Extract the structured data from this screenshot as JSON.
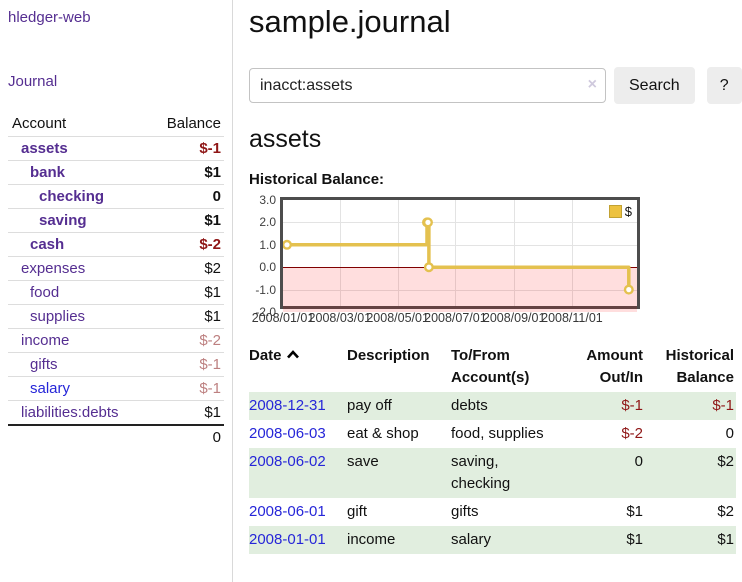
{
  "sidebar": {
    "brand": "hledger-web",
    "journal_link": "Journal",
    "accounts_table": {
      "headers": {
        "account": "Account",
        "balance": "Balance"
      },
      "rows": [
        {
          "name": "assets",
          "balance": "$-1",
          "indent": 1,
          "bold": true,
          "neg": "strong",
          "link": "purple"
        },
        {
          "name": "bank",
          "balance": "$1",
          "indent": 2,
          "bold": true,
          "neg": null,
          "link": "purple"
        },
        {
          "name": "checking",
          "balance": "0",
          "indent": 3,
          "bold": true,
          "neg": null,
          "link": "purple"
        },
        {
          "name": "saving",
          "balance": "$1",
          "indent": 3,
          "bold": true,
          "neg": null,
          "link": "purple"
        },
        {
          "name": "cash",
          "balance": "$-2",
          "indent": 2,
          "bold": true,
          "neg": "strong",
          "link": "purple"
        },
        {
          "name": "expenses",
          "balance": "$2",
          "indent": 1,
          "bold": false,
          "neg": null,
          "link": "purple"
        },
        {
          "name": "food",
          "balance": "$1",
          "indent": 2,
          "bold": false,
          "neg": null,
          "link": "purple"
        },
        {
          "name": "supplies",
          "balance": "$1",
          "indent": 2,
          "bold": false,
          "neg": null,
          "link": "purple"
        },
        {
          "name": "income",
          "balance": "$-2",
          "indent": 1,
          "bold": false,
          "neg": "light",
          "link": "purple"
        },
        {
          "name": "gifts",
          "balance": "$-1",
          "indent": 2,
          "bold": false,
          "neg": "light",
          "link": "purple"
        },
        {
          "name": "salary",
          "balance": "$-1",
          "indent": 2,
          "bold": false,
          "neg": "light",
          "link": "blue"
        },
        {
          "name": "liabilities:debts",
          "balance": "$1",
          "indent": 1,
          "bold": false,
          "neg": null,
          "link": "purple"
        }
      ],
      "total": "0"
    }
  },
  "main": {
    "title": "sample.journal",
    "search": {
      "value": "inacct:assets",
      "clear_icon": "×",
      "search_label": "Search",
      "help_label": "?"
    },
    "account_heading": "assets",
    "chart_label": "Historical Balance:"
  },
  "chart_data": {
    "type": "line",
    "style": "step",
    "title": "Historical Balance:",
    "legend": {
      "position": "top-right",
      "entries": [
        {
          "label": "$",
          "color": "#edc240"
        }
      ]
    },
    "series": [
      {
        "name": "$",
        "color": "#e4c14f",
        "points": [
          {
            "date": "2008-01-01",
            "day": 0,
            "value": 1
          },
          {
            "date": "2008-06-01",
            "day": 152,
            "value": 2
          },
          {
            "date": "2008-06-02",
            "day": 153,
            "value": 2
          },
          {
            "date": "2008-06-03",
            "day": 154,
            "value": 0
          },
          {
            "date": "2008-12-31",
            "day": 365,
            "value": -1
          }
        ]
      }
    ],
    "xlim_days": [
      0,
      380
    ],
    "ylim": [
      -2,
      3
    ],
    "yticks": [
      {
        "v": 3,
        "label": "3.0"
      },
      {
        "v": 2,
        "label": "2.0"
      },
      {
        "v": 1,
        "label": "1.0"
      },
      {
        "v": 0,
        "label": "0.0"
      },
      {
        "v": -1,
        "label": "-1.0"
      },
      {
        "v": -2,
        "label": "-2.0"
      }
    ],
    "xticks": [
      {
        "day": 0,
        "label": "2008/01/01"
      },
      {
        "day": 60,
        "label": "2008/03/01"
      },
      {
        "day": 121,
        "label": "2008/05/01"
      },
      {
        "day": 182,
        "label": "2008/07/01"
      },
      {
        "day": 244,
        "label": "2008/09/01"
      },
      {
        "day": 305,
        "label": "2008/11/01"
      }
    ],
    "grid": true,
    "negative_region_below": 0,
    "zero_line_color": "#800000"
  },
  "register_table": {
    "headers": {
      "date": "Date",
      "description": "Description",
      "accounts": "To/From Account(s)",
      "amount": "Amount Out/In",
      "balance": "Historical Balance"
    },
    "sort": {
      "column": "date",
      "direction": "ascending"
    },
    "rows": [
      {
        "date": "2008-12-31",
        "description": "pay off",
        "accounts": "debts",
        "amount": "$-1",
        "amount_neg": true,
        "balance": "$-1",
        "balance_neg": true,
        "shade": true
      },
      {
        "date": "2008-06-03",
        "description": "eat & shop",
        "accounts": "food, supplies",
        "amount": "$-2",
        "amount_neg": true,
        "balance": "0",
        "balance_neg": false,
        "shade": false
      },
      {
        "date": "2008-06-02",
        "description": "save",
        "accounts": "saving, checking",
        "amount": "0",
        "amount_neg": false,
        "balance": "$2",
        "balance_neg": false,
        "shade": true
      },
      {
        "date": "2008-06-01",
        "description": "gift",
        "accounts": "gifts",
        "amount": "$1",
        "amount_neg": false,
        "balance": "$2",
        "balance_neg": false,
        "shade": false
      },
      {
        "date": "2008-01-01",
        "description": "income",
        "accounts": "salary",
        "amount": "$1",
        "amount_neg": false,
        "balance": "$1",
        "balance_neg": false,
        "shade": true
      }
    ]
  }
}
